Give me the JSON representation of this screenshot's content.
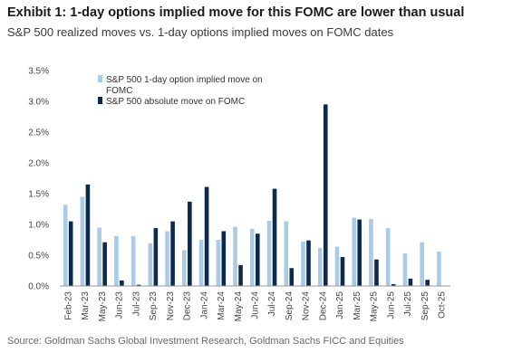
{
  "title": "Exhibit 1: 1-day options implied move for this FOMC are lower than usual",
  "subtitle": "S&P 500 realized moves vs. 1-day options implied moves on FOMC dates",
  "source": "Source: Goldman Sachs Global Investment Research, Goldman Sachs FICC and Equities",
  "colors": {
    "implied": "#a9cbe6",
    "absolute": "#0d2a4a",
    "axis": "#999999"
  },
  "chart_data": {
    "type": "bar",
    "grid": false,
    "legend_position": "top-left",
    "ylim": [
      0,
      3.5
    ],
    "y_ticks": [
      "0.0%",
      "0.5%",
      "1.0%",
      "1.5%",
      "2.0%",
      "2.5%",
      "3.0%",
      "3.5%"
    ],
    "categories": [
      "Feb-23",
      "Mar-23",
      "May-23",
      "Jun-23",
      "Jul-23",
      "Sep-23",
      "Nov-23",
      "Dec-23",
      "Jan-24",
      "Mar-24",
      "May-24",
      "Jun-24",
      "Jul-24",
      "Sep-24",
      "Nov-24",
      "Dec-24",
      "Jan-25",
      "Mar-25",
      "May-25",
      "Jun-25",
      "Jul-25",
      "Sep-25",
      "Oct-25"
    ],
    "series": [
      {
        "name": "S&P 500 1-day option implied move on FOMC",
        "legend_lines": [
          "S&P 500 1-day option implied move on",
          "FOMC"
        ],
        "values": [
          1.32,
          1.45,
          0.95,
          0.81,
          0.81,
          0.69,
          0.89,
          0.58,
          0.75,
          0.75,
          0.96,
          0.93,
          1.06,
          1.05,
          0.72,
          0.62,
          0.64,
          1.11,
          1.09,
          0.94,
          0.53,
          0.71,
          0.56
        ]
      },
      {
        "name": "S&P 500 absolute move on FOMC",
        "legend_lines": [
          "S&P 500 absolute move on FOMC"
        ],
        "values": [
          1.05,
          1.65,
          0.71,
          0.09,
          0.02,
          0.94,
          1.05,
          1.37,
          1.61,
          0.89,
          0.34,
          0.85,
          1.58,
          0.29,
          0.74,
          2.95,
          0.47,
          1.08,
          0.43,
          0.03,
          0.12,
          0.1,
          null
        ]
      }
    ]
  }
}
